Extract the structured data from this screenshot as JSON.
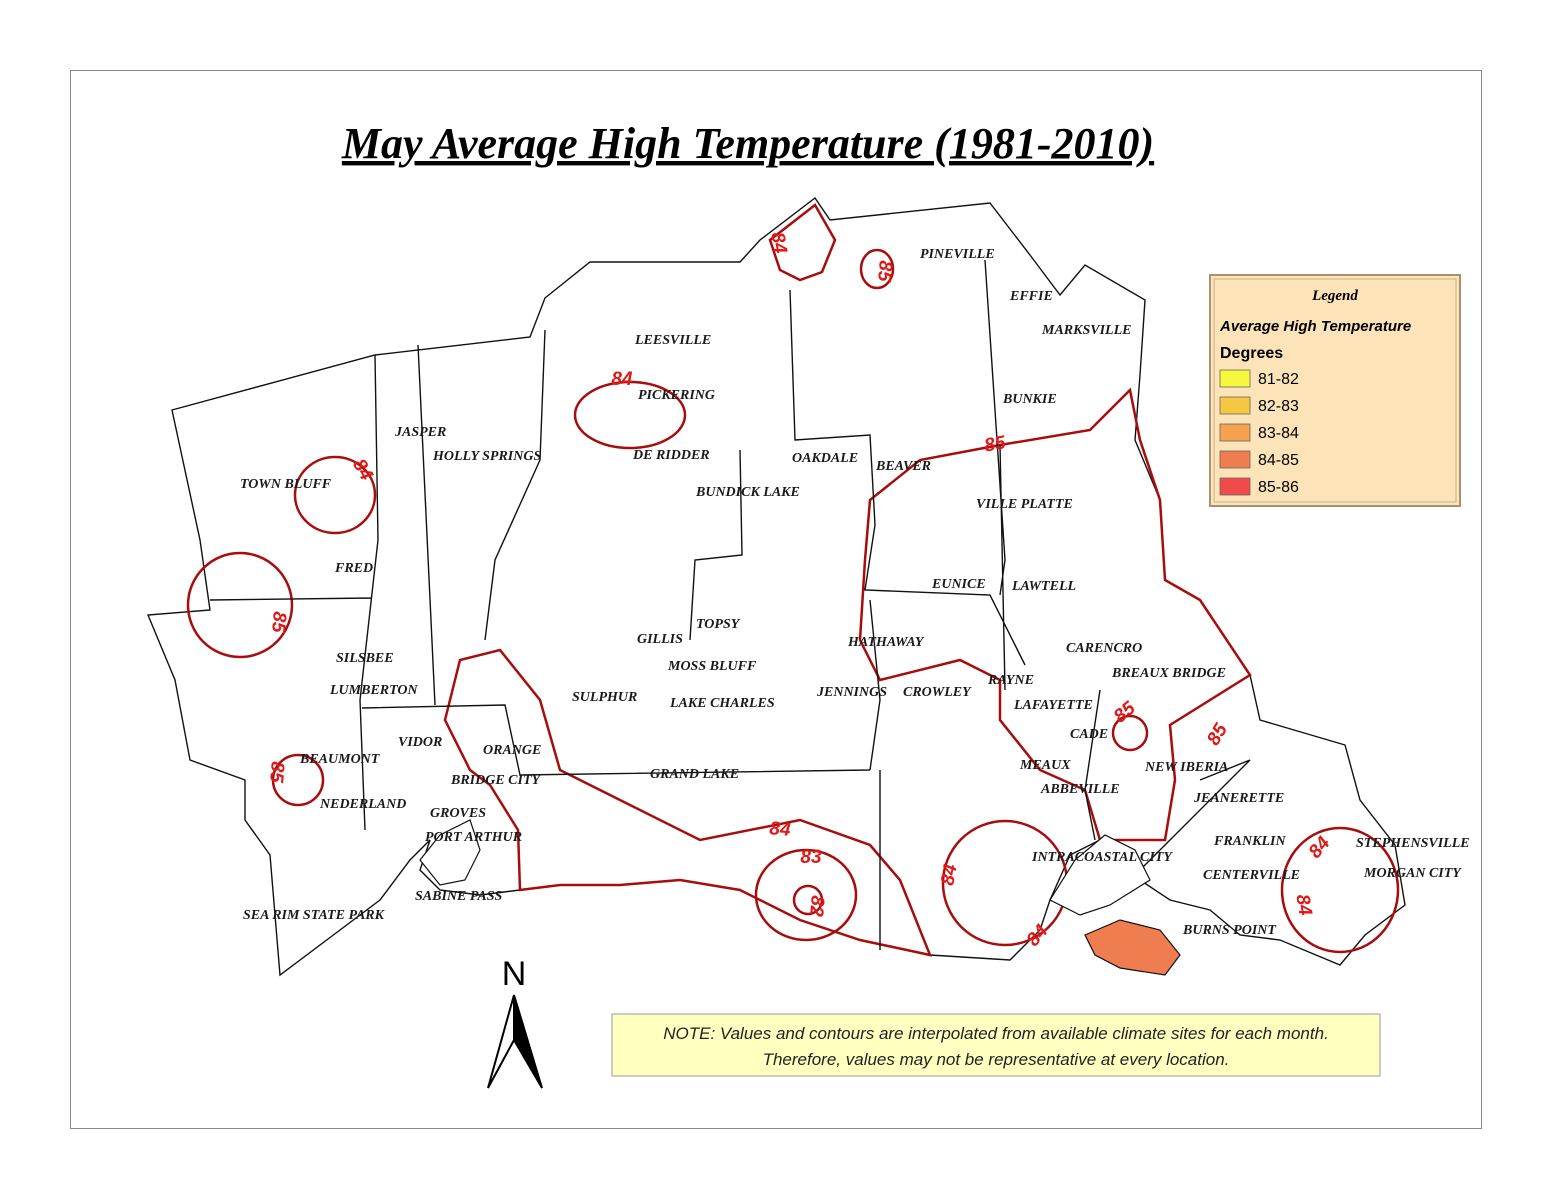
{
  "title": "May Average High Temperature (1981-2010)",
  "legend": {
    "title": "Legend",
    "subtitle": "Average High Temperature",
    "unit": "Degrees",
    "items": [
      {
        "label": "81-82",
        "color": "#f7f73e"
      },
      {
        "label": "82-83",
        "color": "#f5c842"
      },
      {
        "label": "83-84",
        "color": "#f5a14f"
      },
      {
        "label": "84-85",
        "color": "#f07d4f"
      },
      {
        "label": "85-86",
        "color": "#f04a4a"
      }
    ]
  },
  "cities": [
    "PINEVILLE",
    "EFFIE",
    "MARKSVILLE",
    "LEESVILLE",
    "PICKERING",
    "BUNKIE",
    "JASPER",
    "HOLLY SPRINGS",
    "DE RIDDER",
    "OAKDALE",
    "BEAVER",
    "TOWN BLUFF",
    "BUNDICK LAKE",
    "VILLE PLATTE",
    "FRED",
    "EUNICE",
    "LAWTELL",
    "TOPSY",
    "GILLIS",
    "HATHAWAY",
    "CARENCRO",
    "SILSBEE",
    "MOSS BLUFF",
    "BREAUX BRIDGE",
    "RAYNE",
    "LUMBERTON",
    "SULPHUR",
    "JENNINGS",
    "CROWLEY",
    "LAKE CHARLES",
    "LAFAYETTE",
    "VIDOR",
    "CADE",
    "ORANGE",
    "BEAUMONT",
    "MEAUX",
    "NEW IBERIA",
    "GRAND LAKE",
    "BRIDGE CITY",
    "ABBEVILLE",
    "JEANERETTE",
    "NEDERLAND",
    "GROVES",
    "PORT ARTHUR",
    "FRANKLIN",
    "STEPHENSVILLE",
    "INTRACOASTAL CITY",
    "CENTERVILLE",
    "MORGAN CITY",
    "SABINE PASS",
    "SEA RIM STATE PARK",
    "BURNS POINT"
  ],
  "contour_labels": [
    84,
    85,
    84,
    84,
    85,
    85,
    85,
    85,
    85,
    84,
    83,
    82,
    84,
    84,
    84,
    84
  ],
  "north": "N",
  "note": [
    "NOTE: Values and contours are interpolated from available climate sites for each month.",
    "Therefore, values may not be representative at every location."
  ]
}
